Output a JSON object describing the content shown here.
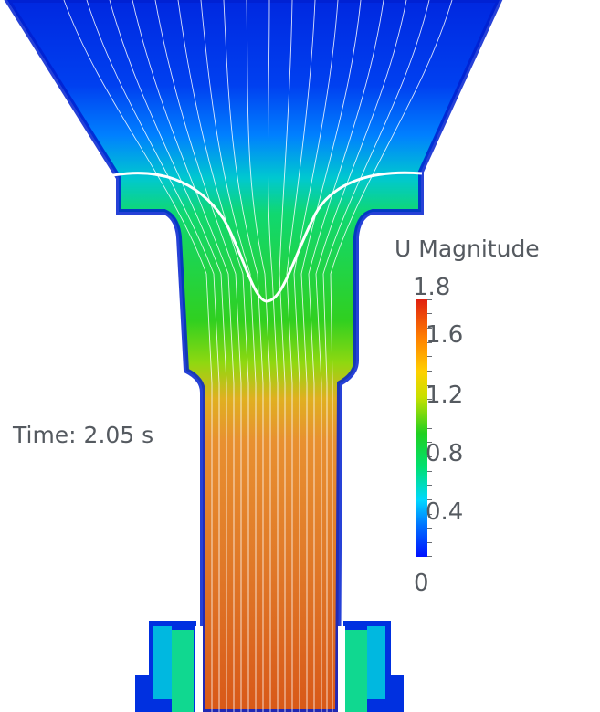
{
  "time_label": "Time: 2.05 s",
  "legend": {
    "title": "U Magnitude",
    "max": "1.8",
    "ticks": [
      "1.6",
      "1.2",
      "0.8",
      "0.4"
    ],
    "min": "0"
  },
  "colormap": [
    "#0018ff",
    "#0080ff",
    "#00e0ff",
    "#00e060",
    "#20d020",
    "#c0e000",
    "#ffd000",
    "#ff8000",
    "#e03010"
  ],
  "colors": {
    "background": "#ffffff",
    "text": "#555a60",
    "streamline": "#ffffff"
  }
}
